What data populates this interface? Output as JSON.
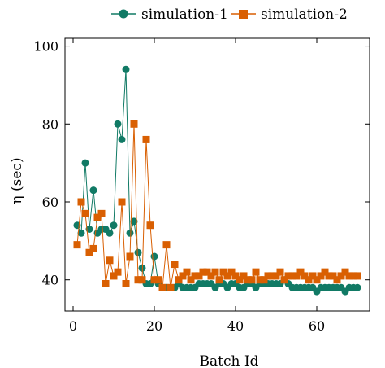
{
  "chart_data": {
    "type": "line",
    "xlabel": "Batch Id",
    "ylabel": "η (sec)",
    "xlim": [
      -2,
      73
    ],
    "ylim": [
      32,
      102
    ],
    "xticks": [
      0,
      20,
      40,
      60
    ],
    "yticks": [
      40,
      60,
      80,
      100
    ],
    "grid": false,
    "legend_position": "top",
    "series": [
      {
        "name": "simulation-1",
        "color": "#117a65",
        "marker": "circle",
        "x": [
          1,
          2,
          3,
          4,
          5,
          6,
          7,
          8,
          9,
          10,
          11,
          12,
          13,
          14,
          15,
          16,
          17,
          18,
          19,
          20,
          21,
          22,
          23,
          24,
          25,
          26,
          27,
          28,
          29,
          30,
          31,
          32,
          33,
          34,
          35,
          36,
          37,
          38,
          39,
          40,
          41,
          42,
          43,
          44,
          45,
          46,
          47,
          48,
          49,
          50,
          51,
          52,
          53,
          54,
          55,
          56,
          57,
          58,
          59,
          60,
          61,
          62,
          63,
          64,
          65,
          66,
          67,
          68,
          69,
          70
        ],
        "y": [
          54,
          52,
          70,
          53,
          63,
          52,
          53,
          53,
          52,
          54,
          80,
          76,
          94,
          52,
          55,
          47,
          43,
          39,
          39,
          46,
          39,
          38,
          38,
          38,
          38,
          39,
          38,
          38,
          38,
          38,
          39,
          39,
          39,
          39,
          38,
          39,
          39,
          38,
          39,
          39,
          38,
          38,
          39,
          39,
          38,
          39,
          39,
          39,
          39,
          39,
          39,
          40,
          39,
          38,
          38,
          38,
          38,
          38,
          38,
          37,
          38,
          38,
          38,
          38,
          38,
          38,
          37,
          38,
          38,
          38
        ]
      },
      {
        "name": "simulation-2",
        "color": "#d95f02",
        "marker": "square",
        "x": [
          1,
          2,
          3,
          4,
          5,
          6,
          7,
          8,
          9,
          10,
          11,
          12,
          13,
          14,
          15,
          16,
          17,
          18,
          19,
          20,
          21,
          22,
          23,
          24,
          25,
          26,
          27,
          28,
          29,
          30,
          31,
          32,
          33,
          34,
          35,
          36,
          37,
          38,
          39,
          40,
          41,
          42,
          43,
          44,
          45,
          46,
          47,
          48,
          49,
          50,
          51,
          52,
          53,
          54,
          55,
          56,
          57,
          58,
          59,
          60,
          61,
          62,
          63,
          64,
          65,
          66,
          67,
          68,
          69,
          70
        ],
        "y": [
          49,
          60,
          57,
          47,
          48,
          56,
          57,
          39,
          45,
          41,
          42,
          60,
          39,
          46,
          80,
          40,
          40,
          76,
          54,
          40,
          40,
          38,
          49,
          38,
          44,
          40,
          41,
          42,
          40,
          41,
          41,
          42,
          42,
          41,
          42,
          40,
          42,
          41,
          42,
          41,
          40,
          41,
          40,
          40,
          42,
          40,
          40,
          41,
          41,
          41,
          42,
          40,
          41,
          41,
          41,
          42,
          41,
          40,
          41,
          40,
          41,
          42,
          41,
          41,
          40,
          41,
          42,
          41,
          41,
          41
        ]
      }
    ]
  }
}
